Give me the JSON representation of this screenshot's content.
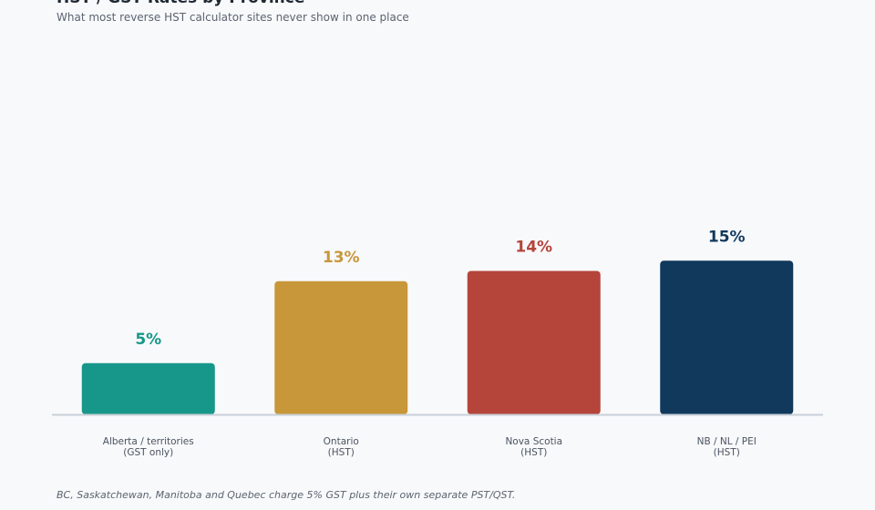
{
  "chart_data": {
    "type": "bar",
    "title": "HST / GST Rates by Province",
    "subtitle": "What most reverse HST calculator sites never show in one place",
    "categories": [
      {
        "line1": "Alberta / territories",
        "line2": "(GST only)"
      },
      {
        "line1": "Ontario",
        "line2": "(HST)"
      },
      {
        "line1": "Nova Scotia",
        "line2": "(HST)"
      },
      {
        "line1": "NB / NL / PEI",
        "line2": "(HST)"
      }
    ],
    "values": [
      5,
      13,
      14,
      15
    ],
    "value_labels": [
      "5%",
      "13%",
      "14%",
      "15%"
    ],
    "colors": [
      "#16978a",
      "#c8973a",
      "#b5453b",
      "#10395c"
    ],
    "ylim": [
      0,
      36
    ],
    "grid": false,
    "legend": "none",
    "footnote": "BC, Saskatchewan, Manitoba and Quebec charge 5% GST plus their own separate PST/QST."
  }
}
